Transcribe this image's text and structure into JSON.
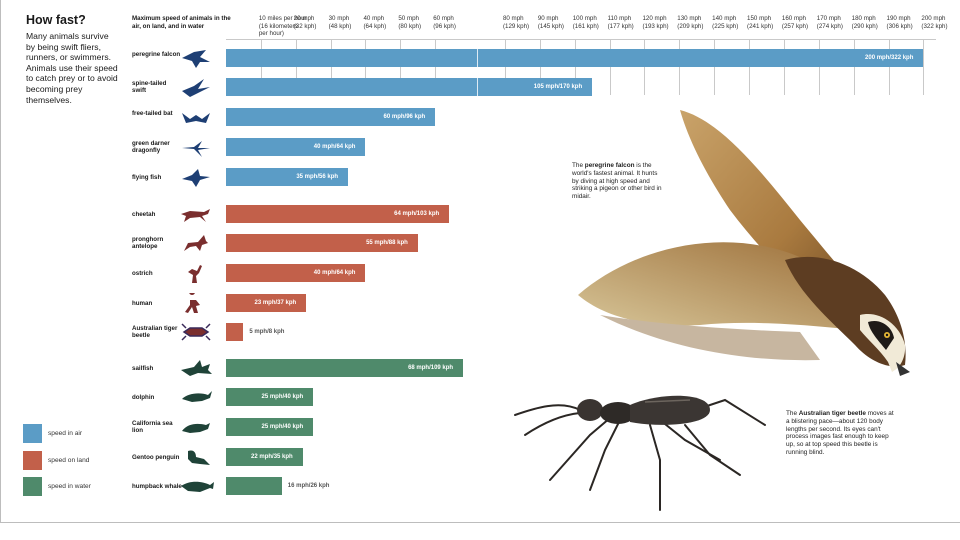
{
  "header": {
    "title": "How fast?",
    "intro": "Many animals survive by being swift fliers, runners, or swimmers. Animals use their speed to catch prey or to avoid becoming prey themselves.",
    "axis_title": "Maximum speed of animals in the air, on land, and in water"
  },
  "annotations": {
    "falcon_bold": "peregrine falcon",
    "falcon_pre": "The ",
    "falcon_post": " is the world's fastest animal. It hunts by diving at high speed and striking a pigeon or other bird in midair.",
    "beetle_bold": "Australian tiger beetle",
    "beetle_pre": "The ",
    "beetle_post": " moves at a blistering pace—about 120 body lengths per second. Its eyes can't process images fast enough to keep up, so at top speed this beetle is running blind."
  },
  "legend": [
    {
      "label": "speed in air",
      "color": "#5b9cc6"
    },
    {
      "label": "speed on land",
      "color": "#c2604a"
    },
    {
      "label": "speed in water",
      "color": "#4f8a6b"
    }
  ],
  "chart_data": {
    "type": "bar",
    "orientation": "horizontal",
    "xlim": [
      0,
      200
    ],
    "ticks": [
      {
        "value": 10,
        "mph": "10 miles per hour",
        "kph": "(16 kilometers",
        "extra": "per hour)"
      },
      {
        "value": 20,
        "mph": "20 mph",
        "kph": "(32 kph)"
      },
      {
        "value": 30,
        "mph": "30 mph",
        "kph": "(48 kph)"
      },
      {
        "value": 40,
        "mph": "40 mph",
        "kph": "(64 kph)"
      },
      {
        "value": 50,
        "mph": "50 mph",
        "kph": "(80 kph)"
      },
      {
        "value": 60,
        "mph": "60 mph",
        "kph": "(96 kph)"
      },
      {
        "value": 80,
        "mph": "80 mph",
        "kph": "(129 kph)"
      },
      {
        "value": 90,
        "mph": "90 mph",
        "kph": "(145 kph)"
      },
      {
        "value": 100,
        "mph": "100 mph",
        "kph": "(161 kph)"
      },
      {
        "value": 110,
        "mph": "110 mph",
        "kph": "(177 kph)"
      },
      {
        "value": 120,
        "mph": "120 mph",
        "kph": "(193 kph)"
      },
      {
        "value": 130,
        "mph": "130 mph",
        "kph": "(209 kph)"
      },
      {
        "value": 140,
        "mph": "140 mph",
        "kph": "(225 kph)"
      },
      {
        "value": 150,
        "mph": "150 mph",
        "kph": "(241 kph)"
      },
      {
        "value": 160,
        "mph": "160 mph",
        "kph": "(257 kph)"
      },
      {
        "value": 170,
        "mph": "170 mph",
        "kph": "(274 kph)"
      },
      {
        "value": 180,
        "mph": "180 mph",
        "kph": "(290 kph)"
      },
      {
        "value": 190,
        "mph": "190 mph",
        "kph": "(306 kph)"
      },
      {
        "value": 200,
        "mph": "200 mph",
        "kph": "(322 kph)"
      }
    ],
    "series": [
      {
        "name": "speed in air",
        "color": "#5b9cc6",
        "items": [
          {
            "animal": "peregrine falcon",
            "mph": 200,
            "label": "200 mph/322 kph"
          },
          {
            "animal": "spine-tailed swift",
            "mph": 105,
            "label": "105 mph/170 kph"
          },
          {
            "animal": "free-tailed bat",
            "mph": 60,
            "label": "60 mph/96 kph"
          },
          {
            "animal": "green darner dragonfly",
            "mph": 40,
            "label": "40 mph/64 kph"
          },
          {
            "animal": "flying fish",
            "mph": 35,
            "label": "35 mph/56 kph"
          }
        ]
      },
      {
        "name": "speed on land",
        "color": "#c2604a",
        "items": [
          {
            "animal": "cheetah",
            "mph": 64,
            "label": "64 mph/103 kph"
          },
          {
            "animal": "pronghorn antelope",
            "mph": 55,
            "label": "55 mph/88 kph"
          },
          {
            "animal": "ostrich",
            "mph": 40,
            "label": "40 mph/64 kph"
          },
          {
            "animal": "human",
            "mph": 23,
            "label": "23 mph/37 kph"
          },
          {
            "animal": "Australian tiger beetle",
            "mph": 5,
            "label": "5 mph/8 kph"
          }
        ]
      },
      {
        "name": "speed in water",
        "color": "#4f8a6b",
        "items": [
          {
            "animal": "sailfish",
            "mph": 68,
            "label": "68 mph/109 kph"
          },
          {
            "animal": "dolphin",
            "mph": 25,
            "label": "25 mph/40 kph"
          },
          {
            "animal": "California sea lion",
            "mph": 25,
            "label": "25 mph/40 kph"
          },
          {
            "animal": "Gentoo penguin",
            "mph": 22,
            "label": "22 mph/35 kph"
          },
          {
            "animal": "humpback whale",
            "mph": 16,
            "label": "16 mph/26 kph"
          }
        ]
      }
    ],
    "icons": [
      "falcon-icon",
      "swift-icon",
      "bat-icon",
      "dragonfly-icon",
      "flying-fish-icon",
      "cheetah-icon",
      "antelope-icon",
      "ostrich-icon",
      "human-icon",
      "beetle-icon",
      "sailfish-icon",
      "dolphin-icon",
      "sea-lion-icon",
      "penguin-icon",
      "whale-icon"
    ]
  }
}
